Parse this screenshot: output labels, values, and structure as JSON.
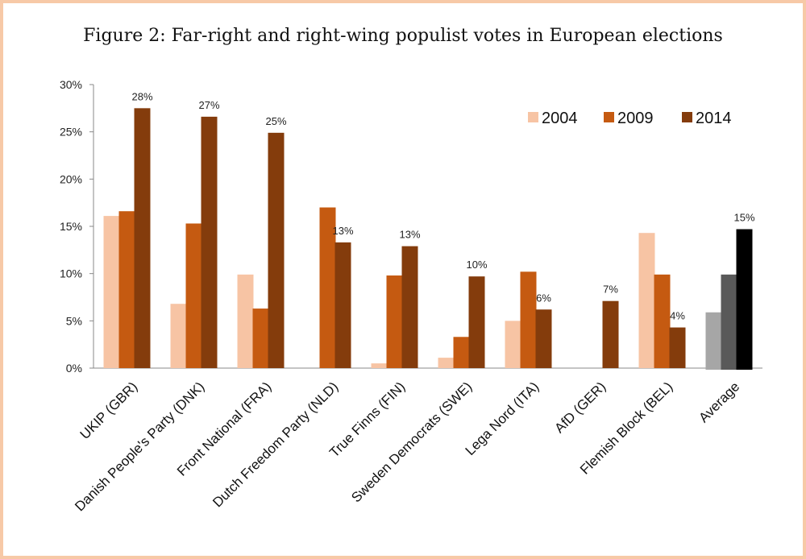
{
  "chart_data": {
    "type": "bar",
    "title": "Figure 2:  Far-right and right-wing populist votes in European elections",
    "xlabel": "",
    "ylabel": "",
    "ylim": [
      0,
      30
    ],
    "yticks": [
      "0%",
      "5%",
      "10%",
      "15%",
      "20%",
      "25%",
      "30%"
    ],
    "ytick_values": [
      0,
      5,
      10,
      15,
      20,
      25,
      30
    ],
    "grid": false,
    "legend_position": "top-right",
    "categories": [
      "UKIP (GBR)",
      "Danish People's Party (DNK)",
      "Front National (FRA)",
      "Dutch Freedom Party (NLD)",
      "True Finns (FIN)",
      "Sweden Democrats (SWE)",
      "Lega Nord (ITA)",
      "AfD (GER)",
      "Flemish Block (BEL)",
      "Average"
    ],
    "series": [
      {
        "name": "2004",
        "color": "#f7c4a4",
        "values": [
          16.1,
          6.8,
          9.9,
          null,
          0.5,
          1.1,
          5.0,
          null,
          14.3,
          5.9
        ],
        "labels": [
          null,
          null,
          null,
          null,
          null,
          null,
          null,
          null,
          null,
          null
        ]
      },
      {
        "name": "2009",
        "color": "#c55a11",
        "values": [
          16.6,
          15.3,
          6.3,
          17.0,
          9.8,
          3.3,
          10.2,
          null,
          9.9,
          9.9
        ],
        "labels": [
          null,
          null,
          null,
          null,
          null,
          null,
          null,
          null,
          null,
          null
        ]
      },
      {
        "name": "2014",
        "color": "#843c0c",
        "values": [
          27.5,
          26.6,
          24.9,
          13.3,
          12.9,
          9.7,
          6.2,
          7.1,
          4.3,
          14.7
        ],
        "labels": [
          "28%",
          "27%",
          "25%",
          "13%",
          "13%",
          "10%",
          "6%",
          "7%",
          "4%",
          "15%"
        ]
      }
    ],
    "average_colors": [
      "#a6a6a6",
      "#595959",
      "#000000"
    ]
  }
}
